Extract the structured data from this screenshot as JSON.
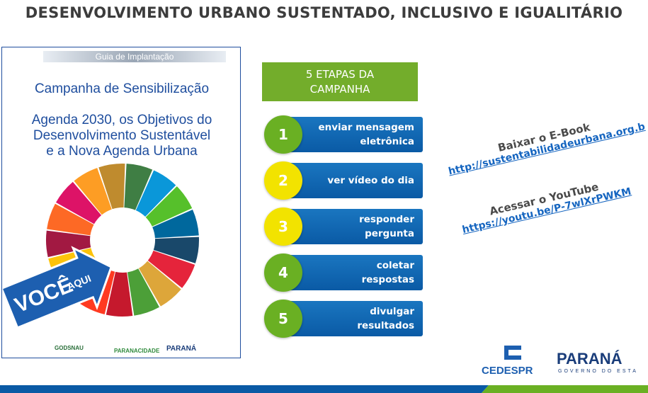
{
  "title": "DESENVOLVIMENTO URBANO SUSTENTADO, INCLUSIVO E IGUALITÁRIO",
  "cover": {
    "header": "Guia de Implantação",
    "subtitle": "Campanha de Sensibilização",
    "heading_lines": [
      "Agenda 2030, os Objetivos do",
      "Desenvolvimento Sustentável",
      "e a Nova Agenda Urbana"
    ],
    "badge": [
      "VOCÊ",
      "AQUI"
    ],
    "logos": [
      "GODSNAU",
      "PARANACIDADE",
      "PARANÁ"
    ]
  },
  "steps": {
    "title_lines": [
      "5 ETAPAS DA",
      "CAMPANHA"
    ],
    "items": [
      {
        "number": "1",
        "label_lines": [
          "enviar mensagem",
          "eletrônica"
        ]
      },
      {
        "number": "2",
        "label_lines": [
          "ver vídeo do dia"
        ]
      },
      {
        "number": "3",
        "label_lines": [
          "responder",
          "pergunta"
        ]
      },
      {
        "number": "4",
        "label_lines": [
          "coletar",
          "respostas"
        ]
      },
      {
        "number": "5",
        "label_lines": [
          "divulgar",
          "resultados"
        ]
      }
    ]
  },
  "links": [
    {
      "label": "Baixar o E-Book",
      "url": "http://sustentabilidadeurbana.org.b"
    },
    {
      "label": "Acessar o YouTube",
      "url": "https://youtu.be/P-7wlXrPWKM"
    }
  ],
  "footer": {
    "cedes": "CEDESPR",
    "parana": "PARANÁ",
    "parana_sub": "GOVERNO DO ESTA"
  }
}
